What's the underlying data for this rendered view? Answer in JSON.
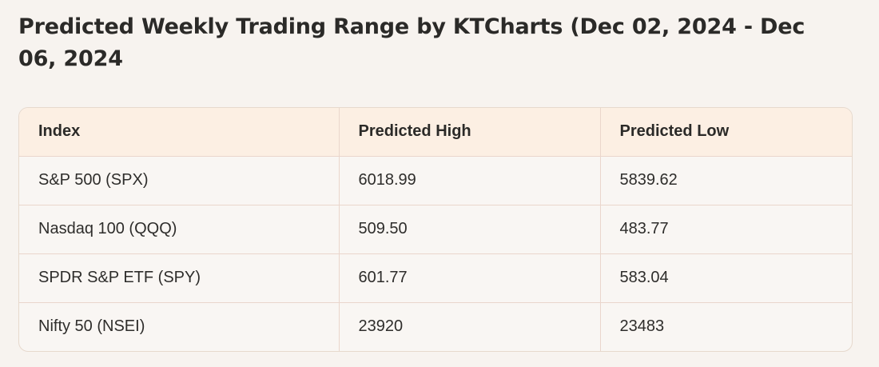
{
  "title": "Predicted Weekly Trading Range by KTCharts (Dec 02, 2024 - Dec 06, 2024",
  "table": {
    "headers": [
      "Index",
      "Predicted High",
      "Predicted Low"
    ],
    "rows": [
      [
        "S&P 500 (SPX)",
        "6018.99",
        "5839.62"
      ],
      [
        "Nasdaq 100 (QQQ)",
        "509.50",
        "483.77"
      ],
      [
        "SPDR S&P ETF (SPY)",
        "601.77",
        "583.04"
      ],
      [
        "Nifty 50 (NSEI)",
        "23920",
        "23483"
      ]
    ]
  },
  "colors": {
    "background": "#f7f3ef",
    "header_background": "#fcefe3",
    "border": "#ead6cc",
    "text": "#2b2a28"
  }
}
